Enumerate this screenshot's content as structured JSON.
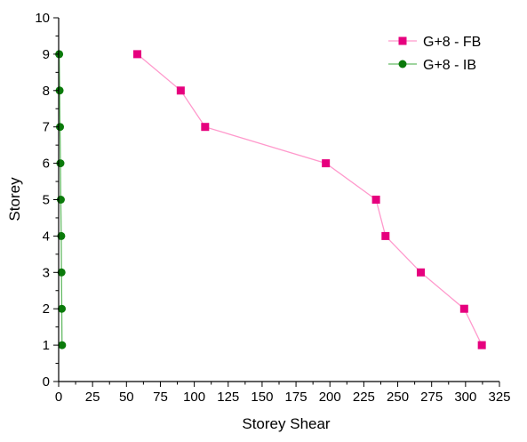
{
  "chart_data": {
    "type": "line",
    "xlabel": "Storey Shear",
    "ylabel": "Storey",
    "xlim": [
      0,
      325
    ],
    "ylim": [
      0,
      10
    ],
    "xticks": [
      0,
      25,
      50,
      75,
      100,
      125,
      150,
      175,
      200,
      225,
      250,
      275,
      300,
      325
    ],
    "yticks": [
      0,
      1,
      2,
      3,
      4,
      5,
      6,
      7,
      8,
      9,
      10
    ],
    "grid": false,
    "legend_position": "top-right",
    "series": [
      {
        "name": "G+8 - FB",
        "color": "#ff99cc",
        "marker_color": "#e6007e",
        "marker": "square",
        "points": [
          {
            "x": 312,
            "y": 1
          },
          {
            "x": 299,
            "y": 2
          },
          {
            "x": 267,
            "y": 3
          },
          {
            "x": 241,
            "y": 4
          },
          {
            "x": 234,
            "y": 5
          },
          {
            "x": 197,
            "y": 6
          },
          {
            "x": 108,
            "y": 7
          },
          {
            "x": 90,
            "y": 8
          },
          {
            "x": 58,
            "y": 9
          }
        ]
      },
      {
        "name": "G+8 - IB",
        "color": "#66bb66",
        "marker_color": "#0a7a0a",
        "marker": "circle",
        "points": [
          {
            "x": 2.5,
            "y": 1
          },
          {
            "x": 2.3,
            "y": 2
          },
          {
            "x": 2.1,
            "y": 3
          },
          {
            "x": 1.9,
            "y": 4
          },
          {
            "x": 1.6,
            "y": 5
          },
          {
            "x": 1.3,
            "y": 6
          },
          {
            "x": 1.0,
            "y": 7
          },
          {
            "x": 0.7,
            "y": 8
          },
          {
            "x": 0.4,
            "y": 9
          }
        ]
      }
    ]
  }
}
